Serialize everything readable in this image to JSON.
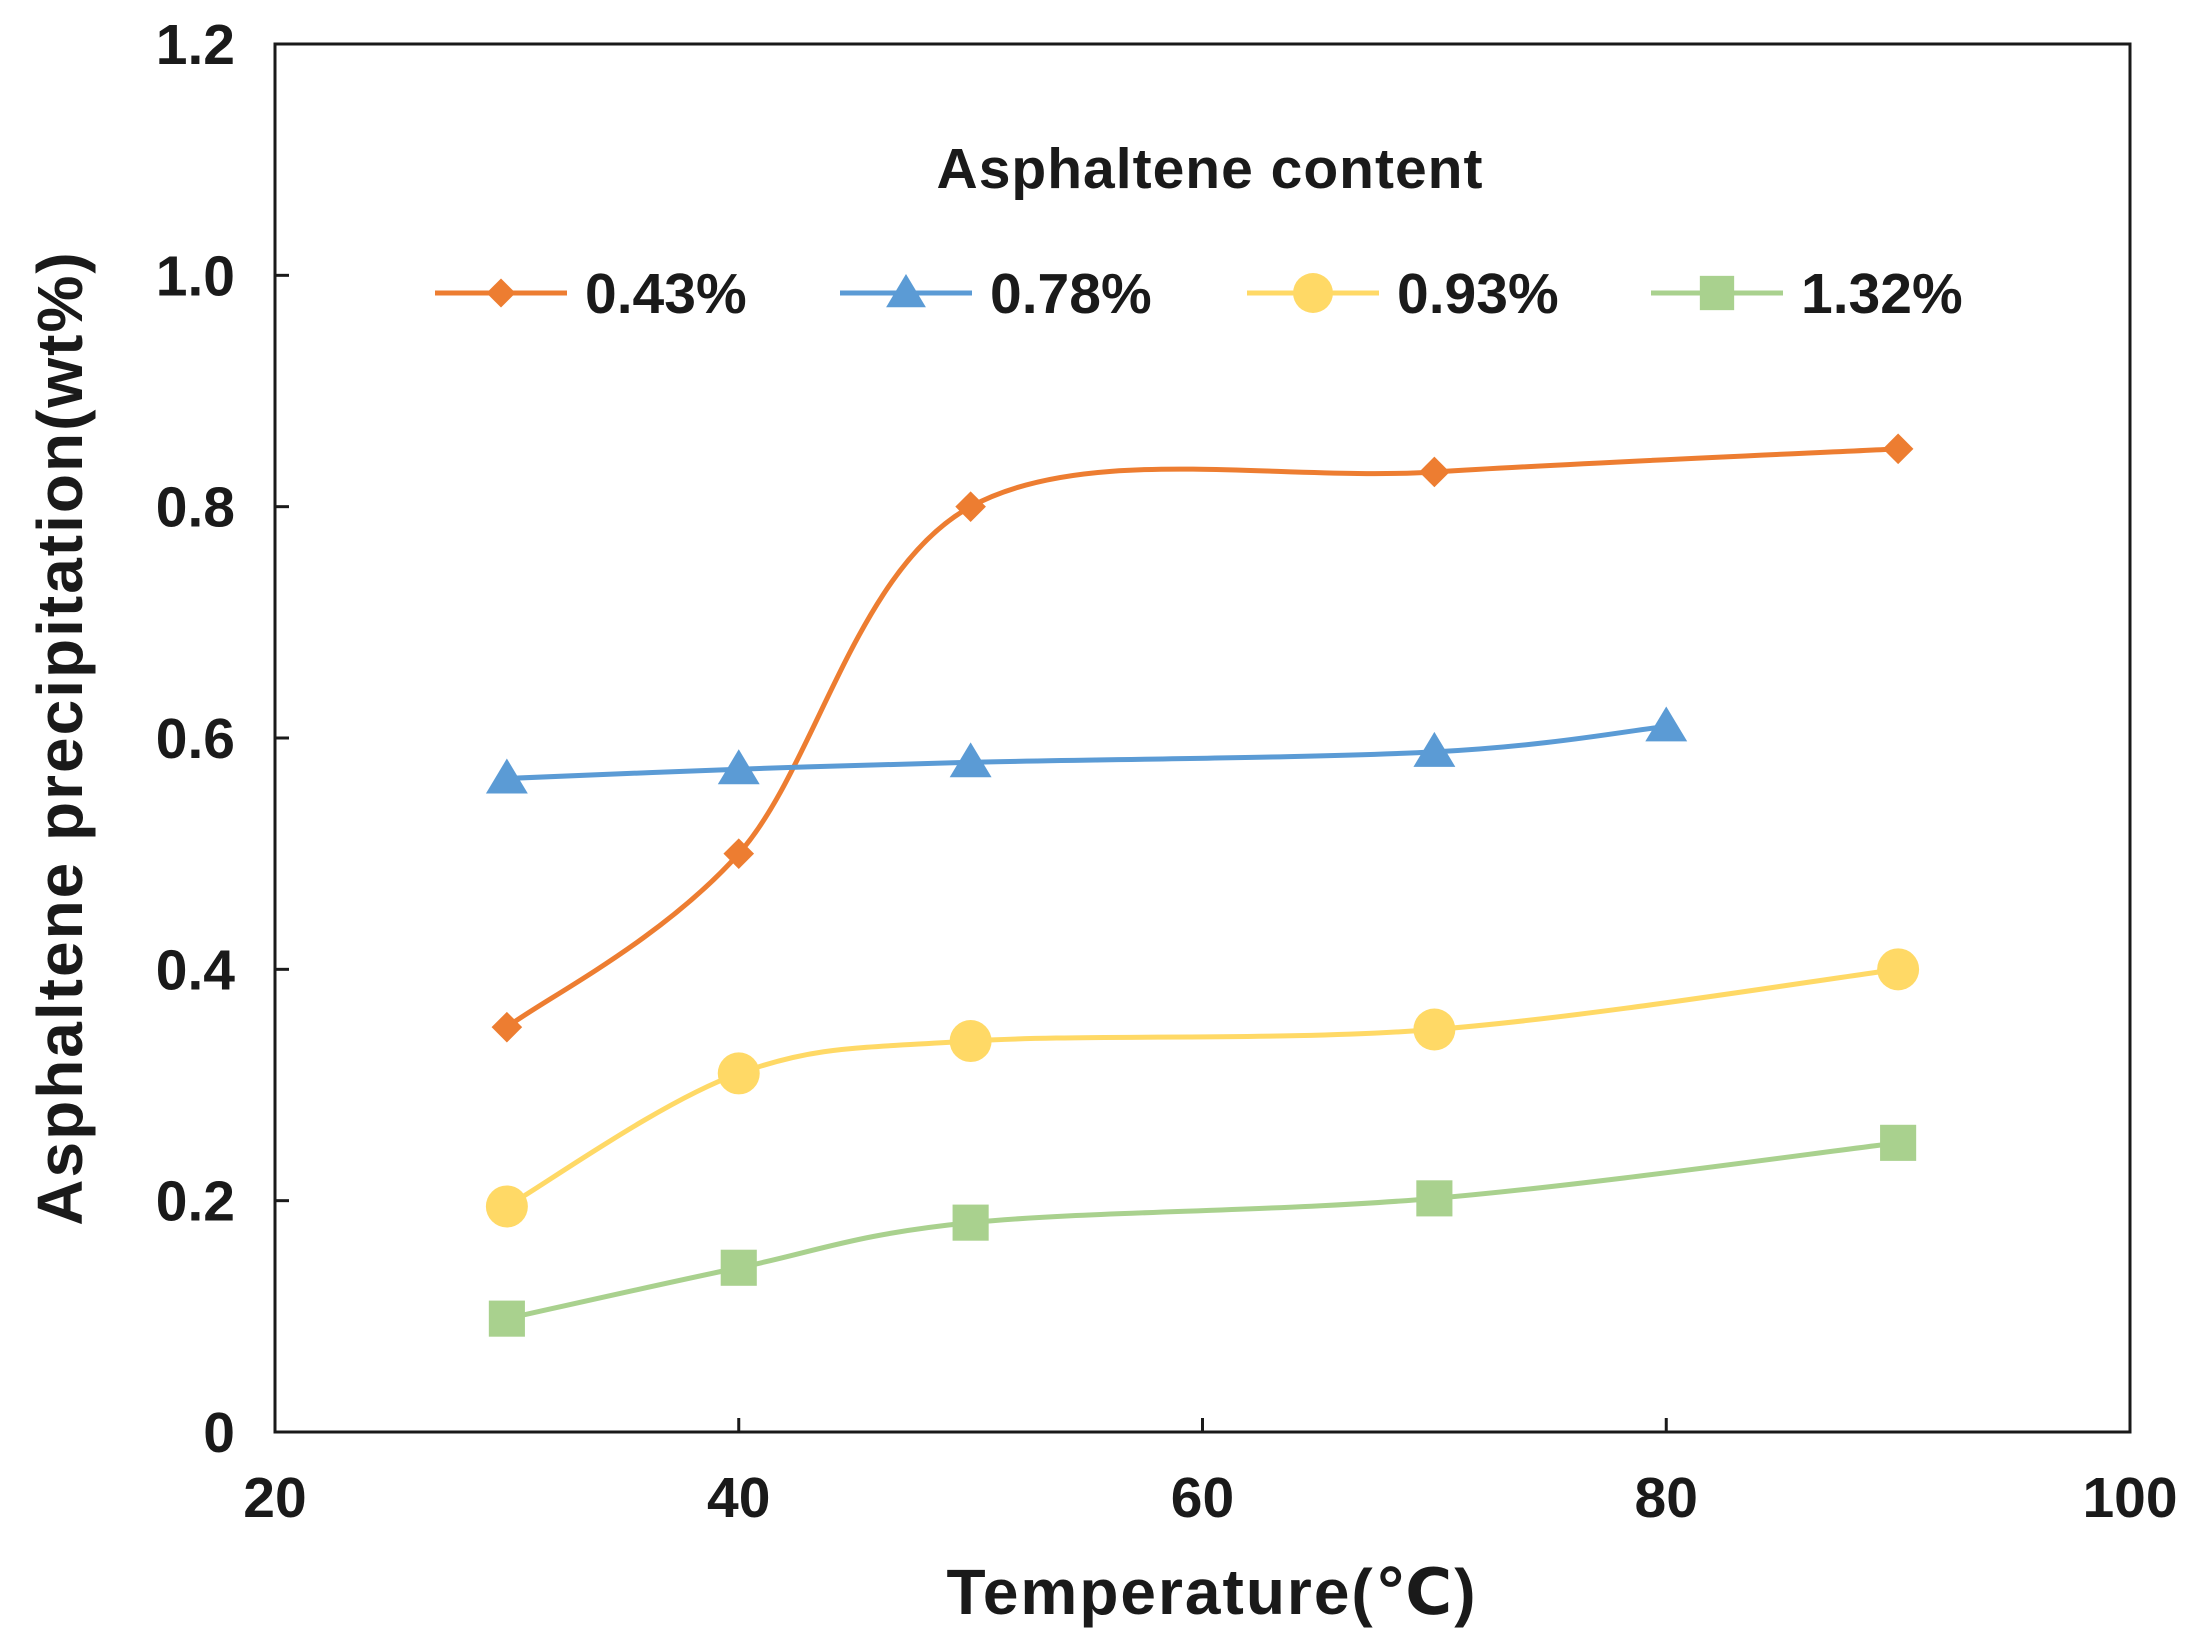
{
  "chart_data": {
    "type": "line",
    "title": "",
    "xlabel": "Temperature(℃)",
    "ylabel": "Asphaltene precipitation(wt%)",
    "xlim": [
      20,
      100
    ],
    "ylim": [
      0,
      1.2
    ],
    "xticks": [
      "20",
      "40",
      "60",
      "80",
      "100"
    ],
    "yticks": [
      "0",
      "0.2",
      "0.4",
      "0.6",
      "0.8",
      "1.0",
      "1.2"
    ],
    "grid": false,
    "legend_title": "Asphaltene content",
    "legend_position": "top-center",
    "series": [
      {
        "name": "0.43%",
        "color": "#ED7D31",
        "marker": "diamond",
        "x": [
          30,
          40,
          50,
          70,
          90
        ],
        "y": [
          0.35,
          0.5,
          0.8,
          0.83,
          0.85
        ]
      },
      {
        "name": "0.78%",
        "color": "#5B9BD5",
        "marker": "triangle",
        "x": [
          30,
          40,
          50,
          70,
          80
        ],
        "y": [
          0.565,
          0.573,
          0.579,
          0.588,
          0.61
        ]
      },
      {
        "name": "0.93%",
        "color": "#FFD966",
        "marker": "circle",
        "x": [
          30,
          40,
          50,
          70,
          90
        ],
        "y": [
          0.195,
          0.31,
          0.338,
          0.348,
          0.4
        ]
      },
      {
        "name": "1.32%",
        "color": "#A9D18E",
        "marker": "square",
        "x": [
          30,
          40,
          50,
          70,
          90
        ],
        "y": [
          0.098,
          0.142,
          0.181,
          0.202,
          0.25
        ]
      }
    ]
  }
}
